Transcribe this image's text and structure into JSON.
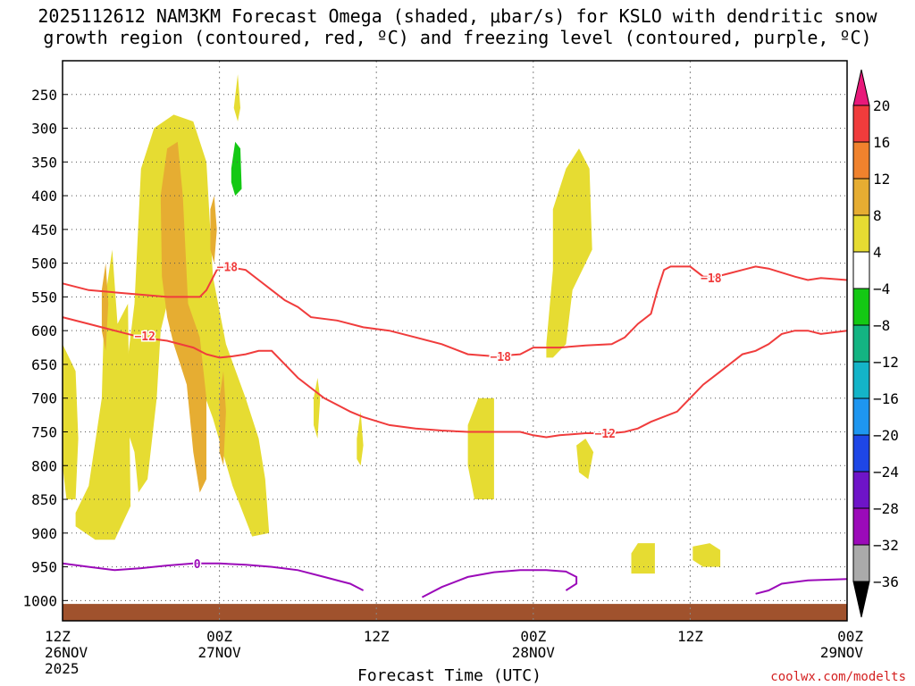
{
  "header": {
    "title_line1": "2025112612 NAM3KM Forecast Omega (shaded, μbar/s) for KSLO with dendritic snow",
    "title_line2": "growth region (contoured, red, ºC) and freezing level (contoured, purple, ºC)"
  },
  "footer": {
    "credit": "coolwx.com/modelts",
    "year": "2025"
  },
  "chart_data": {
    "type": "heatmap",
    "title": "2025112612 NAM3KM Forecast Omega (shaded, μbar/s) for KSLO with dendritic snow growth region (contoured, red, ºC) and freezing level (contoured, purple, ºC)",
    "xlabel": "Forecast Time (UTC)",
    "ylabel": "",
    "x_range_hours": [
      0,
      60
    ],
    "x_ticks": [
      {
        "hour": 0,
        "label": "12Z",
        "sub": "26NOV"
      },
      {
        "hour": 12,
        "label": "00Z",
        "sub": "27NOV"
      },
      {
        "hour": 24,
        "label": "12Z",
        "sub": ""
      },
      {
        "hour": 36,
        "label": "00Z",
        "sub": "28NOV"
      },
      {
        "hour": 48,
        "label": "12Z",
        "sub": ""
      },
      {
        "hour": 60,
        "label": "00Z",
        "sub": "29NOV"
      }
    ],
    "y_range_hpa": [
      1030,
      200
    ],
    "y_ticks": [
      250,
      300,
      350,
      400,
      450,
      500,
      550,
      600,
      650,
      700,
      750,
      800,
      850,
      900,
      950,
      1000
    ],
    "colorbar": {
      "labels": [
        "20",
        "16",
        "12",
        "8",
        "4",
        "−4",
        "−8",
        "−12",
        "−16",
        "−20",
        "−24",
        "−28",
        "−32",
        "−36"
      ],
      "colors": [
        "#e8197a",
        "#f03c3c",
        "#f0822d",
        "#e6ad32",
        "#e6dc32",
        "#ffffff",
        "#14c814",
        "#14b482",
        "#14b4c8",
        "#1e96f0",
        "#1e46e6",
        "#6e14c8",
        "#9b0ab9",
        "#aaaaaa",
        "#000000"
      ]
    },
    "omega_regions": [
      {
        "level": "4-8",
        "color": "#e6dc32",
        "points": [
          [
            0,
            620
          ],
          [
            1,
            660
          ],
          [
            1.2,
            760
          ],
          [
            1,
            850
          ],
          [
            0.3,
            850
          ],
          [
            0,
            800
          ]
        ]
      },
      {
        "level": "4-8",
        "color": "#e6dc32",
        "points": [
          [
            1,
            870
          ],
          [
            2,
            830
          ],
          [
            3,
            700
          ],
          [
            3.2,
            560
          ],
          [
            3.8,
            480
          ],
          [
            4.2,
            590
          ],
          [
            5,
            560
          ],
          [
            5.2,
            860
          ],
          [
            4,
            910
          ],
          [
            2.5,
            910
          ],
          [
            1,
            890
          ]
        ]
      },
      {
        "level": "4-8",
        "color": "#e6dc32",
        "points": [
          [
            4.5,
            720
          ],
          [
            5.5,
            560
          ],
          [
            6,
            360
          ],
          [
            7,
            300
          ],
          [
            8.5,
            280
          ],
          [
            10,
            290
          ],
          [
            11,
            350
          ],
          [
            11.5,
            520
          ],
          [
            12.5,
            620
          ],
          [
            14,
            700
          ],
          [
            15,
            760
          ],
          [
            15.5,
            820
          ],
          [
            15.8,
            900
          ],
          [
            14.5,
            905
          ],
          [
            13,
            830
          ],
          [
            11.5,
            730
          ],
          [
            10,
            650
          ],
          [
            9,
            600
          ],
          [
            8,
            560
          ],
          [
            7.5,
            600
          ],
          [
            7.2,
            700
          ],
          [
            6.5,
            820
          ],
          [
            5.8,
            840
          ],
          [
            5.5,
            780
          ]
        ]
      },
      {
        "level": "4-8",
        "color": "#e6dc32",
        "points": [
          [
            13.1,
            270
          ],
          [
            13.4,
            220
          ],
          [
            13.6,
            270
          ],
          [
            13.4,
            290
          ]
        ]
      },
      {
        "level": "-4--8",
        "color": "#14c814",
        "points": [
          [
            12.9,
            360
          ],
          [
            13.2,
            320
          ],
          [
            13.6,
            330
          ],
          [
            13.7,
            390
          ],
          [
            13.2,
            400
          ],
          [
            12.9,
            380
          ]
        ]
      },
      {
        "level": "4-8",
        "color": "#e6dc32",
        "points": [
          [
            19.2,
            700
          ],
          [
            19.5,
            670
          ],
          [
            19.7,
            700
          ],
          [
            19.5,
            760
          ],
          [
            19.2,
            740
          ]
        ]
      },
      {
        "level": "4-8",
        "color": "#e6dc32",
        "points": [
          [
            22.5,
            760
          ],
          [
            22.8,
            720
          ],
          [
            23,
            770
          ],
          [
            22.8,
            800
          ],
          [
            22.5,
            790
          ]
        ]
      },
      {
        "level": "4-8",
        "color": "#e6dc32",
        "points": [
          [
            31,
            740
          ],
          [
            31.8,
            700
          ],
          [
            33,
            700
          ],
          [
            33,
            850
          ],
          [
            31.5,
            850
          ],
          [
            31,
            800
          ]
        ]
      },
      {
        "level": "4-8",
        "color": "#e6dc32",
        "points": [
          [
            37,
            620
          ],
          [
            37.5,
            510
          ],
          [
            37.5,
            420
          ],
          [
            38.5,
            360
          ],
          [
            39.5,
            330
          ],
          [
            40.3,
            360
          ],
          [
            40.5,
            480
          ],
          [
            39,
            540
          ],
          [
            38.5,
            620
          ],
          [
            37.5,
            640
          ],
          [
            37,
            640
          ]
        ]
      },
      {
        "level": "4-8",
        "color": "#e6dc32",
        "points": [
          [
            39.3,
            770
          ],
          [
            40,
            760
          ],
          [
            40.6,
            780
          ],
          [
            40.2,
            820
          ],
          [
            39.5,
            810
          ]
        ]
      },
      {
        "level": "4-8",
        "color": "#e6dc32",
        "points": [
          [
            43.5,
            930
          ],
          [
            44,
            915
          ],
          [
            45.3,
            915
          ],
          [
            45.3,
            960
          ],
          [
            43.5,
            960
          ]
        ]
      },
      {
        "level": "4-8",
        "color": "#e6dc32",
        "points": [
          [
            48.2,
            920
          ],
          [
            49.5,
            915
          ],
          [
            50.3,
            925
          ],
          [
            50.3,
            950
          ],
          [
            49,
            950
          ],
          [
            48.2,
            940
          ]
        ]
      },
      {
        "level": "8-12",
        "color": "#e6ad32",
        "points": [
          [
            7.5,
            400
          ],
          [
            8,
            330
          ],
          [
            8.8,
            320
          ],
          [
            9.2,
            400
          ],
          [
            9.6,
            560
          ],
          [
            10.5,
            610
          ],
          [
            11,
            700
          ],
          [
            11,
            820
          ],
          [
            10.5,
            840
          ],
          [
            10,
            780
          ],
          [
            9.5,
            680
          ],
          [
            8.5,
            620
          ],
          [
            8,
            580
          ],
          [
            7.6,
            520
          ]
        ]
      },
      {
        "level": "8-12",
        "color": "#e6ad32",
        "points": [
          [
            11.3,
            420
          ],
          [
            11.6,
            400
          ],
          [
            11.8,
            450
          ],
          [
            11.6,
            500
          ],
          [
            11.3,
            480
          ]
        ]
      },
      {
        "level": "8-12",
        "color": "#e6ad32",
        "points": [
          [
            3,
            540
          ],
          [
            3.3,
            500
          ],
          [
            3.5,
            560
          ],
          [
            3.3,
            630
          ],
          [
            3,
            600
          ]
        ]
      },
      {
        "level": "8-12",
        "color": "#e6ad32",
        "points": [
          [
            12,
            700
          ],
          [
            12.3,
            660
          ],
          [
            12.5,
            720
          ],
          [
            12.3,
            800
          ],
          [
            12,
            780
          ]
        ]
      }
    ],
    "contours": [
      {
        "name": "-18",
        "color": "#f03c3c",
        "label": "−18",
        "points": [
          [
            0,
            530
          ],
          [
            2,
            540
          ],
          [
            5,
            545
          ],
          [
            8,
            550
          ],
          [
            10.5,
            550
          ],
          [
            11,
            540
          ],
          [
            11.8,
            510
          ],
          [
            12.5,
            505
          ],
          [
            14,
            510
          ],
          [
            15,
            525
          ],
          [
            16,
            540
          ],
          [
            17,
            555
          ],
          [
            18,
            565
          ],
          [
            19,
            580
          ],
          [
            21,
            585
          ],
          [
            23,
            595
          ],
          [
            25,
            600
          ],
          [
            27,
            610
          ],
          [
            29,
            620
          ],
          [
            31,
            635
          ],
          [
            33,
            638
          ],
          [
            35,
            635
          ],
          [
            36,
            625
          ],
          [
            38,
            625
          ],
          [
            40,
            622
          ],
          [
            42,
            620
          ],
          [
            43,
            610
          ],
          [
            44,
            590
          ],
          [
            45,
            575
          ],
          [
            45.5,
            540
          ],
          [
            46,
            510
          ],
          [
            46.5,
            505
          ],
          [
            48,
            505
          ],
          [
            49,
            520
          ],
          [
            50,
            520
          ],
          [
            51,
            515
          ],
          [
            52,
            510
          ],
          [
            53,
            505
          ],
          [
            54,
            508
          ],
          [
            56,
            520
          ],
          [
            57,
            525
          ],
          [
            58,
            522
          ],
          [
            60,
            525
          ]
        ]
      },
      {
        "name": "-12",
        "color": "#f03c3c",
        "label": "−12",
        "points": [
          [
            0,
            580
          ],
          [
            2,
            590
          ],
          [
            4,
            600
          ],
          [
            6,
            610
          ],
          [
            8,
            615
          ],
          [
            10,
            625
          ],
          [
            11,
            635
          ],
          [
            12,
            640
          ],
          [
            13,
            638
          ],
          [
            14,
            635
          ],
          [
            15,
            630
          ],
          [
            16,
            630
          ],
          [
            17,
            650
          ],
          [
            18,
            670
          ],
          [
            20,
            700
          ],
          [
            22,
            720
          ],
          [
            23,
            728
          ],
          [
            25,
            740
          ],
          [
            27,
            745
          ],
          [
            29,
            748
          ],
          [
            31,
            750
          ],
          [
            33,
            750
          ],
          [
            35,
            750
          ],
          [
            36,
            755
          ],
          [
            37,
            758
          ],
          [
            38,
            755
          ],
          [
            40,
            752
          ],
          [
            42,
            752
          ],
          [
            43,
            750
          ],
          [
            44,
            745
          ],
          [
            45,
            735
          ],
          [
            47,
            720
          ],
          [
            48,
            700
          ],
          [
            49,
            680
          ],
          [
            50,
            665
          ],
          [
            51,
            650
          ],
          [
            52,
            635
          ],
          [
            53,
            630
          ],
          [
            54,
            620
          ],
          [
            55,
            605
          ],
          [
            56,
            600
          ],
          [
            57,
            600
          ],
          [
            58,
            605
          ],
          [
            60,
            600
          ]
        ]
      },
      {
        "name": "0",
        "color": "#9b0ab9",
        "label": "0",
        "points": [
          [
            0,
            945
          ],
          [
            2,
            950
          ],
          [
            4,
            955
          ],
          [
            6,
            952
          ],
          [
            8,
            948
          ],
          [
            10,
            945
          ],
          [
            12,
            945
          ],
          [
            14,
            947
          ],
          [
            16,
            950
          ],
          [
            18,
            955
          ],
          [
            20,
            965
          ],
          [
            22,
            975
          ],
          [
            23,
            985
          ]
        ]
      },
      {
        "name": "0",
        "color": "#9b0ab9",
        "label": "",
        "points": [
          [
            27.5,
            995
          ],
          [
            29,
            980
          ],
          [
            31,
            965
          ],
          [
            33,
            958
          ],
          [
            35,
            955
          ],
          [
            37,
            955
          ],
          [
            38.5,
            957
          ],
          [
            39.3,
            965
          ],
          [
            39.3,
            975
          ],
          [
            38.5,
            985
          ]
        ]
      },
      {
        "name": "0",
        "color": "#9b0ab9",
        "label": "",
        "points": [
          [
            53,
            990
          ],
          [
            54,
            985
          ],
          [
            55,
            975
          ],
          [
            57,
            970
          ],
          [
            60,
            968
          ]
        ]
      }
    ],
    "contour_labels": [
      {
        "text": "−18",
        "hour": 12.6,
        "hpa": 505
      },
      {
        "text": "−18",
        "hour": 49.6,
        "hpa": 522
      },
      {
        "text": "−18",
        "hour": 33.5,
        "hpa": 638
      },
      {
        "text": "−12",
        "hour": 6.3,
        "hpa": 608
      },
      {
        "text": "−12",
        "hour": 41.5,
        "hpa": 752
      },
      {
        "text": "0",
        "hour": 10.3,
        "hpa": 945
      }
    ],
    "ground": {
      "color": "#a0522d",
      "from_hpa": 1005
    }
  }
}
